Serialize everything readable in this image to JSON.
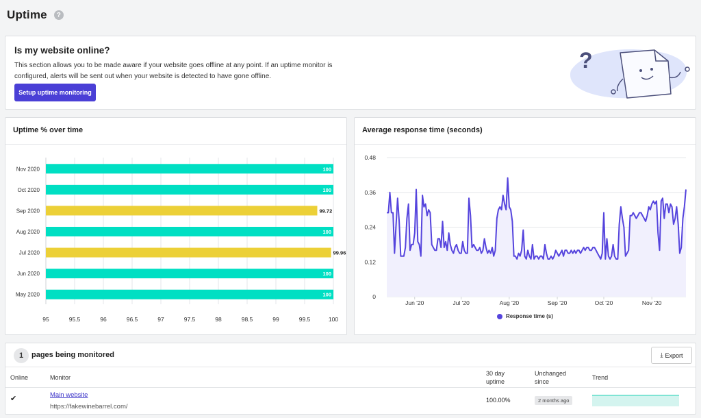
{
  "page": {
    "title": "Uptime",
    "help_icon": "?"
  },
  "intro": {
    "heading": "Is my website online?",
    "text": "This section allows you to be made aware if your website goes offline at any point. If an uptime monitor is configured, alerts will be sent out when your website is detected to have gone offline.",
    "button_label": "Setup uptime monitoring"
  },
  "uptime_card": {
    "title": "Uptime % over time"
  },
  "response_card": {
    "title": "Average response time (seconds)"
  },
  "monitors": {
    "count": "1",
    "heading": "pages being monitored",
    "export_label": "Export",
    "columns": {
      "online": "Online",
      "monitor": "Monitor",
      "uptime_l1": "30 day",
      "uptime_l2": "uptime",
      "unchanged_l1": "Unchanged",
      "unchanged_l2": "since",
      "trend": "Trend"
    },
    "rows": [
      {
        "online": "✔",
        "name": "Main website",
        "url": "https://fakewinebarrel.com/",
        "uptime": "100.00%",
        "unchanged_since": "2 months ago"
      }
    ]
  },
  "colors": {
    "accent": "#4a3fd6",
    "bar_full": "#00dfc3",
    "bar_partial": "#ecd037",
    "line": "#5544dd",
    "line_fill": "#f1f0fd"
  },
  "chart_data": [
    {
      "type": "bar",
      "orientation": "horizontal",
      "title": "Uptime % over time",
      "categories": [
        "Nov 2020",
        "Oct 2020",
        "Sep 2020",
        "Aug 2020",
        "Jul 2020",
        "Jun 2020",
        "May 2020"
      ],
      "values": [
        100,
        100,
        99.72,
        100,
        99.96,
        100,
        100
      ],
      "value_labels": [
        "100",
        "100",
        "99.72",
        "100",
        "99.96",
        "100",
        "100"
      ],
      "xlim": [
        95,
        100
      ],
      "xticks": [
        "95",
        "95.5",
        "96",
        "96.5",
        "97",
        "97.5",
        "98",
        "98.5",
        "99",
        "99.5",
        "100"
      ],
      "grid": true
    },
    {
      "type": "line",
      "title": "Average response time (seconds)",
      "series": [
        {
          "name": "Response time (s)"
        }
      ],
      "ylim": [
        0,
        0.48
      ],
      "yticks": [
        "0",
        "0.12",
        "0.24",
        "0.36",
        "0.48"
      ],
      "xticks": [
        "Jun '20",
        "Jul '20",
        "Aug '20",
        "Sep '20",
        "Oct '20",
        "Nov '20"
      ],
      "x_range": [
        "2020-05-14",
        "2020-11-23"
      ],
      "legend": "bottom",
      "points": [
        [
          "2020-05-14",
          0.29
        ],
        [
          "2020-05-15",
          0.29
        ],
        [
          "2020-05-16",
          0.36
        ],
        [
          "2020-05-17",
          0.29
        ],
        [
          "2020-05-18",
          0.29
        ],
        [
          "2020-05-19",
          0.15
        ],
        [
          "2020-05-20",
          0.25
        ],
        [
          "2020-05-21",
          0.34
        ],
        [
          "2020-05-22",
          0.26
        ],
        [
          "2020-05-23",
          0.14
        ],
        [
          "2020-05-24",
          0.14
        ],
        [
          "2020-05-25",
          0.14
        ],
        [
          "2020-05-26",
          0.17
        ],
        [
          "2020-05-27",
          0.27
        ],
        [
          "2020-05-28",
          0.32
        ],
        [
          "2020-05-29",
          0.16
        ],
        [
          "2020-05-30",
          0.18
        ],
        [
          "2020-05-31",
          0.18
        ],
        [
          "2020-06-01",
          0.22
        ],
        [
          "2020-06-02",
          0.37
        ],
        [
          "2020-06-03",
          0.19
        ],
        [
          "2020-06-04",
          0.18
        ],
        [
          "2020-06-05",
          0.14
        ],
        [
          "2020-06-06",
          0.35
        ],
        [
          "2020-06-07",
          0.31
        ],
        [
          "2020-06-08",
          0.32
        ],
        [
          "2020-06-09",
          0.28
        ],
        [
          "2020-06-10",
          0.3
        ],
        [
          "2020-06-11",
          0.29
        ],
        [
          "2020-06-12",
          0.18
        ],
        [
          "2020-06-13",
          0.17
        ],
        [
          "2020-06-14",
          0.16
        ],
        [
          "2020-06-15",
          0.16
        ],
        [
          "2020-06-16",
          0.2
        ],
        [
          "2020-06-17",
          0.2
        ],
        [
          "2020-06-18",
          0.17
        ],
        [
          "2020-06-19",
          0.26
        ],
        [
          "2020-06-20",
          0.17
        ],
        [
          "2020-06-21",
          0.19
        ],
        [
          "2020-06-22",
          0.16
        ],
        [
          "2020-06-23",
          0.22
        ],
        [
          "2020-06-24",
          0.18
        ],
        [
          "2020-06-25",
          0.16
        ],
        [
          "2020-06-26",
          0.15
        ],
        [
          "2020-06-27",
          0.17
        ],
        [
          "2020-06-28",
          0.18
        ],
        [
          "2020-06-29",
          0.16
        ],
        [
          "2020-06-30",
          0.15
        ],
        [
          "2020-07-01",
          0.15
        ],
        [
          "2020-07-02",
          0.19
        ],
        [
          "2020-07-03",
          0.16
        ],
        [
          "2020-07-04",
          0.15
        ],
        [
          "2020-07-05",
          0.15
        ],
        [
          "2020-07-06",
          0.34
        ],
        [
          "2020-07-07",
          0.28
        ],
        [
          "2020-07-08",
          0.17
        ],
        [
          "2020-07-09",
          0.18
        ],
        [
          "2020-07-10",
          0.17
        ],
        [
          "2020-07-11",
          0.16
        ],
        [
          "2020-07-12",
          0.16
        ],
        [
          "2020-07-13",
          0.17
        ],
        [
          "2020-07-14",
          0.15
        ],
        [
          "2020-07-15",
          0.16
        ],
        [
          "2020-07-16",
          0.2
        ],
        [
          "2020-07-17",
          0.17
        ],
        [
          "2020-07-18",
          0.15
        ],
        [
          "2020-07-19",
          0.16
        ],
        [
          "2020-07-20",
          0.15
        ],
        [
          "2020-07-21",
          0.17
        ],
        [
          "2020-07-22",
          0.14
        ],
        [
          "2020-07-23",
          0.16
        ],
        [
          "2020-07-24",
          0.27
        ],
        [
          "2020-07-25",
          0.3
        ],
        [
          "2020-07-26",
          0.31
        ],
        [
          "2020-07-27",
          0.3
        ],
        [
          "2020-07-28",
          0.35
        ],
        [
          "2020-07-29",
          0.32
        ],
        [
          "2020-07-30",
          0.3
        ],
        [
          "2020-07-31",
          0.41
        ],
        [
          "2020-08-01",
          0.31
        ],
        [
          "2020-08-02",
          0.3
        ],
        [
          "2020-08-03",
          0.26
        ],
        [
          "2020-08-04",
          0.14
        ],
        [
          "2020-08-05",
          0.14
        ],
        [
          "2020-08-06",
          0.13
        ],
        [
          "2020-08-07",
          0.15
        ],
        [
          "2020-08-08",
          0.14
        ],
        [
          "2020-08-09",
          0.16
        ],
        [
          "2020-08-10",
          0.23
        ],
        [
          "2020-08-11",
          0.14
        ],
        [
          "2020-08-12",
          0.13
        ],
        [
          "2020-08-13",
          0.16
        ],
        [
          "2020-08-14",
          0.14
        ],
        [
          "2020-08-15",
          0.13
        ],
        [
          "2020-08-16",
          0.18
        ],
        [
          "2020-08-17",
          0.13
        ],
        [
          "2020-08-18",
          0.14
        ],
        [
          "2020-08-19",
          0.14
        ],
        [
          "2020-08-20",
          0.13
        ],
        [
          "2020-08-21",
          0.14
        ],
        [
          "2020-08-22",
          0.14
        ],
        [
          "2020-08-23",
          0.13
        ],
        [
          "2020-08-24",
          0.18
        ],
        [
          "2020-08-25",
          0.15
        ],
        [
          "2020-08-26",
          0.13
        ],
        [
          "2020-08-27",
          0.13
        ],
        [
          "2020-08-28",
          0.14
        ],
        [
          "2020-08-29",
          0.13
        ],
        [
          "2020-08-30",
          0.14
        ],
        [
          "2020-08-31",
          0.16
        ],
        [
          "2020-09-01",
          0.15
        ],
        [
          "2020-09-02",
          0.14
        ],
        [
          "2020-09-03",
          0.15
        ],
        [
          "2020-09-04",
          0.16
        ],
        [
          "2020-09-05",
          0.14
        ],
        [
          "2020-09-06",
          0.16
        ],
        [
          "2020-09-07",
          0.16
        ],
        [
          "2020-09-08",
          0.15
        ],
        [
          "2020-09-09",
          0.15
        ],
        [
          "2020-09-10",
          0.16
        ],
        [
          "2020-09-11",
          0.15
        ],
        [
          "2020-09-12",
          0.16
        ],
        [
          "2020-09-13",
          0.15
        ],
        [
          "2020-09-14",
          0.16
        ],
        [
          "2020-09-15",
          0.16
        ],
        [
          "2020-09-16",
          0.15
        ],
        [
          "2020-09-17",
          0.16
        ],
        [
          "2020-09-18",
          0.17
        ],
        [
          "2020-09-19",
          0.16
        ],
        [
          "2020-09-20",
          0.17
        ],
        [
          "2020-09-21",
          0.17
        ],
        [
          "2020-09-22",
          0.16
        ],
        [
          "2020-09-23",
          0.16
        ],
        [
          "2020-09-24",
          0.17
        ],
        [
          "2020-09-25",
          0.17
        ],
        [
          "2020-09-26",
          0.16
        ],
        [
          "2020-09-27",
          0.15
        ],
        [
          "2020-09-28",
          0.14
        ],
        [
          "2020-09-29",
          0.13
        ],
        [
          "2020-09-30",
          0.15
        ],
        [
          "2020-10-01",
          0.29
        ],
        [
          "2020-10-02",
          0.13
        ],
        [
          "2020-10-03",
          0.2
        ],
        [
          "2020-10-04",
          0.14
        ],
        [
          "2020-10-05",
          0.13
        ],
        [
          "2020-10-06",
          0.14
        ],
        [
          "2020-10-07",
          0.18
        ],
        [
          "2020-10-08",
          0.14
        ],
        [
          "2020-10-09",
          0.13
        ],
        [
          "2020-10-10",
          0.13
        ],
        [
          "2020-10-11",
          0.25
        ],
        [
          "2020-10-12",
          0.31
        ],
        [
          "2020-10-13",
          0.27
        ],
        [
          "2020-10-14",
          0.24
        ],
        [
          "2020-10-15",
          0.14
        ],
        [
          "2020-10-16",
          0.15
        ],
        [
          "2020-10-17",
          0.16
        ],
        [
          "2020-10-18",
          0.28
        ],
        [
          "2020-10-19",
          0.28
        ],
        [
          "2020-10-20",
          0.29
        ],
        [
          "2020-10-21",
          0.28
        ],
        [
          "2020-10-22",
          0.27
        ],
        [
          "2020-10-23",
          0.28
        ],
        [
          "2020-10-24",
          0.29
        ],
        [
          "2020-10-25",
          0.29
        ],
        [
          "2020-10-26",
          0.28
        ],
        [
          "2020-10-27",
          0.27
        ],
        [
          "2020-10-28",
          0.26
        ],
        [
          "2020-10-29",
          0.28
        ],
        [
          "2020-10-30",
          0.31
        ],
        [
          "2020-10-31",
          0.3
        ],
        [
          "2020-11-01",
          0.32
        ],
        [
          "2020-11-02",
          0.33
        ],
        [
          "2020-11-03",
          0.32
        ],
        [
          "2020-11-04",
          0.33
        ],
        [
          "2020-11-05",
          0.22
        ],
        [
          "2020-11-06",
          0.16
        ],
        [
          "2020-11-07",
          0.33
        ],
        [
          "2020-11-08",
          0.34
        ],
        [
          "2020-11-09",
          0.27
        ],
        [
          "2020-11-10",
          0.32
        ],
        [
          "2020-11-11",
          0.32
        ],
        [
          "2020-11-12",
          0.29
        ],
        [
          "2020-11-13",
          0.32
        ],
        [
          "2020-11-14",
          0.31
        ],
        [
          "2020-11-15",
          0.25
        ],
        [
          "2020-11-16",
          0.27
        ],
        [
          "2020-11-17",
          0.31
        ],
        [
          "2020-11-18",
          0.25
        ],
        [
          "2020-11-19",
          0.15
        ],
        [
          "2020-11-20",
          0.17
        ],
        [
          "2020-11-21",
          0.27
        ],
        [
          "2020-11-22",
          0.31
        ],
        [
          "2020-11-23",
          0.37
        ]
      ]
    }
  ]
}
